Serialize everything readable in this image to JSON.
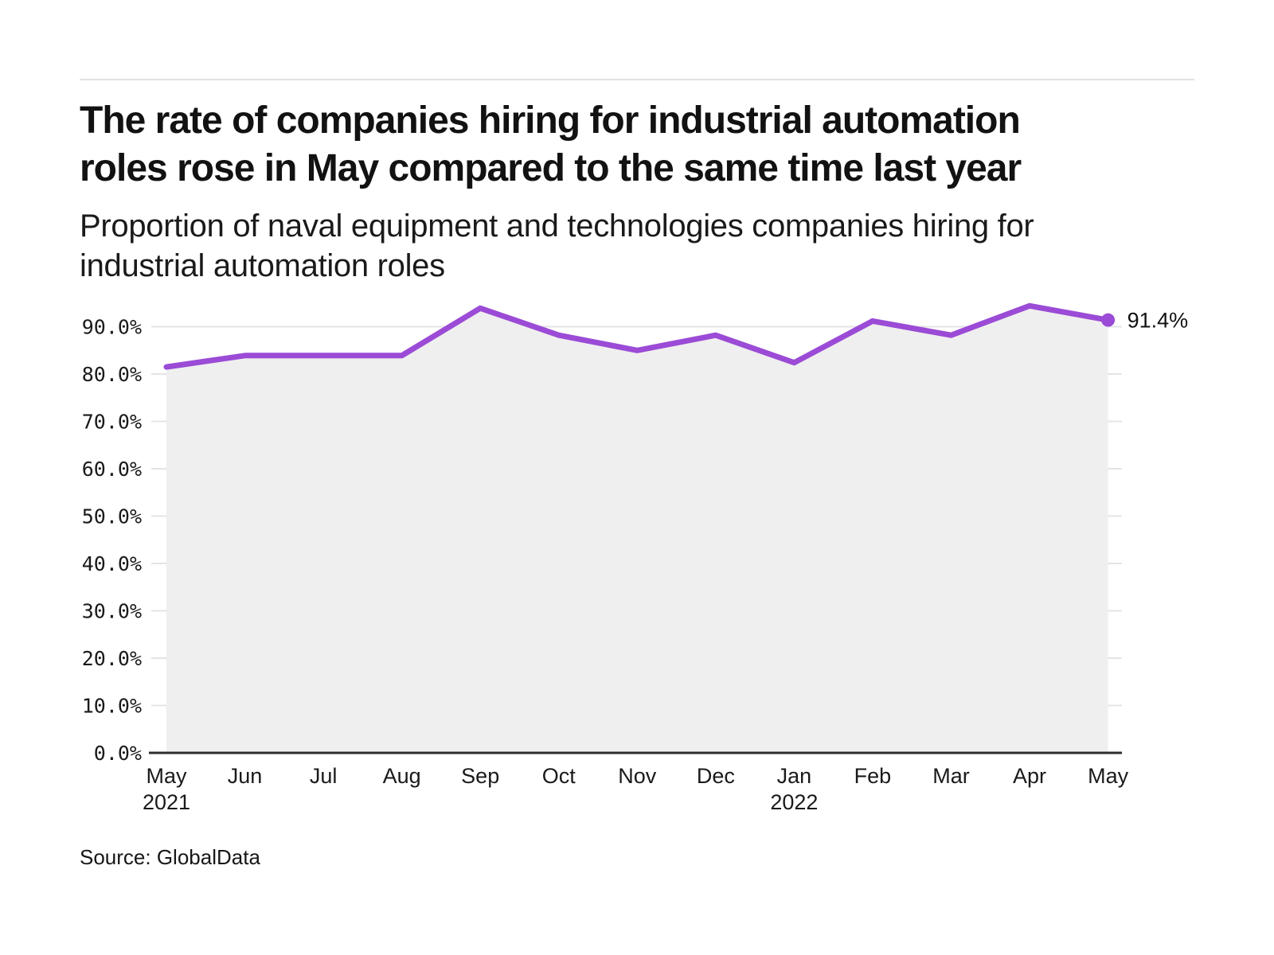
{
  "header": {
    "title": "The rate of companies hiring for industrial automation roles rose in May compared to the same time last year",
    "title_lines": [
      "The rate of companies hiring for industrial automation",
      "roles rose in May compared to the same time last year"
    ],
    "subtitle": "Proportion of naval equipment and technologies companies hiring for industrial automation roles",
    "subtitle_lines": [
      "Proportion of naval equipment and technologies companies hiring for",
      "industrial automation roles"
    ]
  },
  "footer": {
    "source": "Source: GlobalData"
  },
  "chart_data": {
    "type": "area",
    "title": "The rate of companies hiring for industrial automation roles rose in May compared to the same time last year",
    "subtitle": "Proportion of naval equipment and technologies companies hiring for industrial automation roles",
    "categories": [
      "May",
      "Jun",
      "Jul",
      "Aug",
      "Sep",
      "Oct",
      "Nov",
      "Dec",
      "Jan",
      "Feb",
      "Mar",
      "Apr",
      "May"
    ],
    "year_labels": [
      {
        "index": 0,
        "label": "2021"
      },
      {
        "index": 8,
        "label": "2022"
      }
    ],
    "series": [
      {
        "name": "Proportion of companies hiring for industrial automation roles",
        "values": [
          81.5,
          83.9,
          83.9,
          83.9,
          93.9,
          88.2,
          85.0,
          88.2,
          82.4,
          91.2,
          88.2,
          94.4,
          91.4
        ]
      }
    ],
    "unit": "%",
    "xlabel": "",
    "ylabel": "",
    "ylim": [
      0,
      100
    ],
    "yticks": [
      0,
      10,
      20,
      30,
      40,
      50,
      60,
      70,
      80,
      90
    ],
    "ytick_labels": [
      "0.0%",
      "10.0%",
      "20.0%",
      "30.0%",
      "40.0%",
      "50.0%",
      "60.0%",
      "70.0%",
      "80.0%",
      "90.0%"
    ],
    "grid": true,
    "legend": false,
    "end_label": "91.4%",
    "colors": {
      "line": "#9b4bd6",
      "area_fill": "#efefef",
      "gridline": "#e4e4e4",
      "axis": "#2d2d2d",
      "tick_text": "#1a1a1a"
    }
  }
}
